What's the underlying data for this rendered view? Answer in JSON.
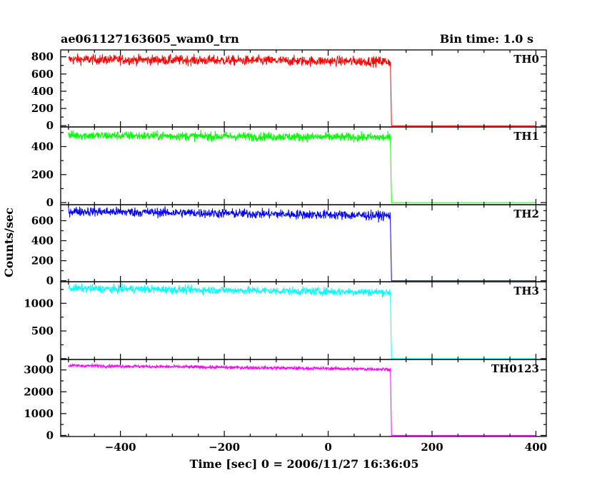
{
  "header": {
    "title": "ae061127163605_wam0_trn",
    "bin_time": "Bin time: 1.0 s"
  },
  "chart_data": {
    "type": "line",
    "xlabel": "Time [sec] 0 = 2006/11/27 16:36:05",
    "ylabel": "Counts/sec",
    "xlim": [
      -515,
      420
    ],
    "x_ticks": [
      -400,
      -200,
      0,
      200,
      400
    ],
    "x_tick_labels": [
      "−400",
      "−200",
      "0",
      "200",
      "400"
    ],
    "drop_time": 120,
    "data_start": -500,
    "data_end": 400,
    "panels": [
      {
        "name": "TH0",
        "color": "#ff0000",
        "ylim": [
          -15,
          880
        ],
        "yticks": [
          0,
          200,
          400,
          600,
          800
        ],
        "start_level": 770,
        "end_level": 745,
        "noise": 55,
        "after_level": 0
      },
      {
        "name": "TH1",
        "color": "#00ff00",
        "ylim": [
          -15,
          540
        ],
        "yticks": [
          0,
          200,
          400
        ],
        "start_level": 480,
        "end_level": 465,
        "noise": 30,
        "after_level": 0
      },
      {
        "name": "TH2",
        "color": "#0000ff",
        "ylim": [
          -10,
          760
        ],
        "yticks": [
          0,
          200,
          400,
          600
        ],
        "start_level": 695,
        "end_level": 650,
        "noise": 45,
        "after_level": 0
      },
      {
        "name": "TH3",
        "color": "#00ffff",
        "ylim": [
          -15,
          1390
        ],
        "yticks": [
          0,
          500,
          1000
        ],
        "start_level": 1270,
        "end_level": 1200,
        "noise": 70,
        "after_level": 0
      },
      {
        "name": "TH0123",
        "color": "#ff00ff",
        "ylim": [
          -50,
          3480
        ],
        "yticks": [
          0,
          1000,
          2000,
          3000
        ],
        "start_level": 3200,
        "end_level": 3030,
        "noise": 75,
        "after_level": 0
      }
    ]
  }
}
